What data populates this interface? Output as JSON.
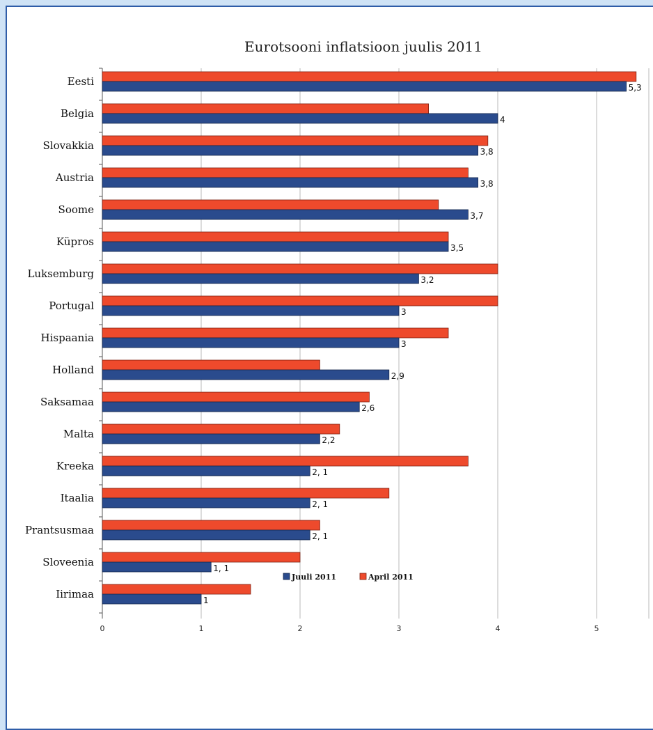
{
  "chart_data": {
    "type": "bar",
    "orientation": "horizontal",
    "title": "Eurotsooni inflatsioon juulis 2011",
    "categories": [
      "Eesti",
      "Belgia",
      "Slovakkia",
      "Austria",
      "Soome",
      "Küpros",
      "Luksemburg",
      "Portugal",
      "Hispaania",
      "Holland",
      "Saksamaa",
      "Malta",
      "Kreeka",
      "Itaalia",
      "Prantsusmaa",
      "Sloveenia",
      "Iirimaa"
    ],
    "series": [
      {
        "name": "Juuli 2011",
        "color": "#2a4b8d",
        "values": [
          5.3,
          4,
          3.8,
          3.8,
          3.7,
          3.5,
          3.2,
          3,
          3,
          2.9,
          2.6,
          2.2,
          2.1,
          2.1,
          2.1,
          1.1,
          1
        ],
        "labels": [
          "5,3",
          "4",
          "3,8",
          "3,8",
          "3,7",
          "3,5",
          "3,2",
          "3",
          "3",
          "2,9",
          "2,6",
          "2,2",
          "2, 1",
          "2, 1",
          "2, 1",
          "1, 1",
          "1"
        ]
      },
      {
        "name": "April 2011",
        "color": "#ee4a2c",
        "values": [
          5.4,
          3.3,
          3.9,
          3.7,
          3.4,
          3.5,
          4,
          4,
          3.5,
          2.2,
          2.7,
          2.4,
          3.7,
          2.9,
          2.2,
          2,
          1.5
        ]
      }
    ],
    "xlim": [
      0,
      5.5
    ],
    "xticks": [
      "0",
      "1",
      "2",
      "3",
      "4",
      "5"
    ],
    "grid": true,
    "legend_position": "bottom",
    "legend": [
      "Juuli 2011",
      "April 2011"
    ]
  }
}
